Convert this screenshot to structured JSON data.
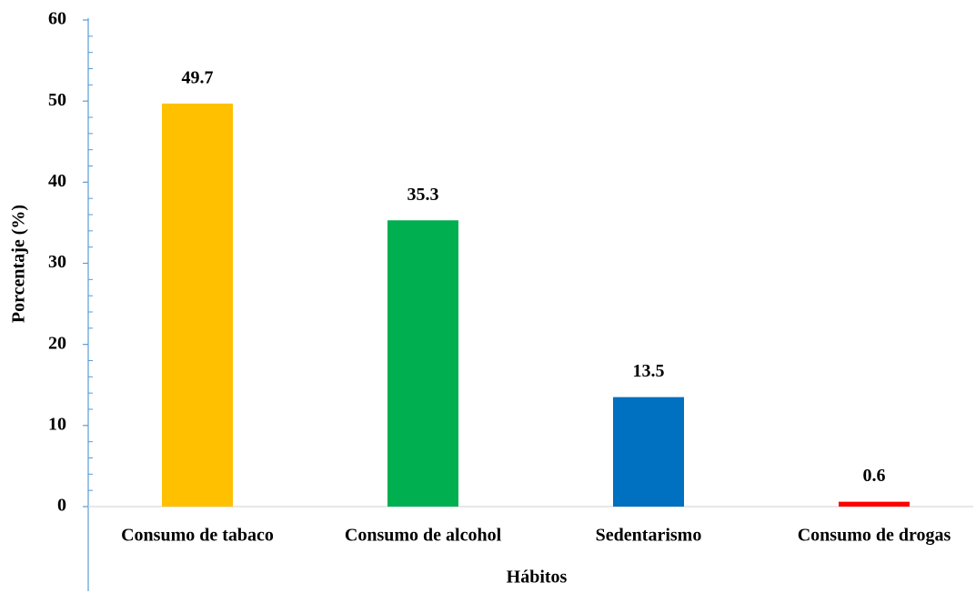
{
  "chart_data": {
    "type": "bar",
    "x_label": "Hábitos",
    "y_label": "Porcentaje (%)",
    "categories": [
      "Consumo de tabaco",
      "Consumo de alcohol",
      "Sedentarismo",
      "Consumo de drogas"
    ],
    "values": [
      49.7,
      35.3,
      13.5,
      0.6
    ],
    "colors": [
      "#ffc000",
      "#00b050",
      "#0070c0",
      "#ff0000"
    ],
    "ylim": [
      0,
      60
    ],
    "yticks": [
      0,
      10,
      20,
      30,
      40,
      50,
      60
    ],
    "grid": false
  }
}
